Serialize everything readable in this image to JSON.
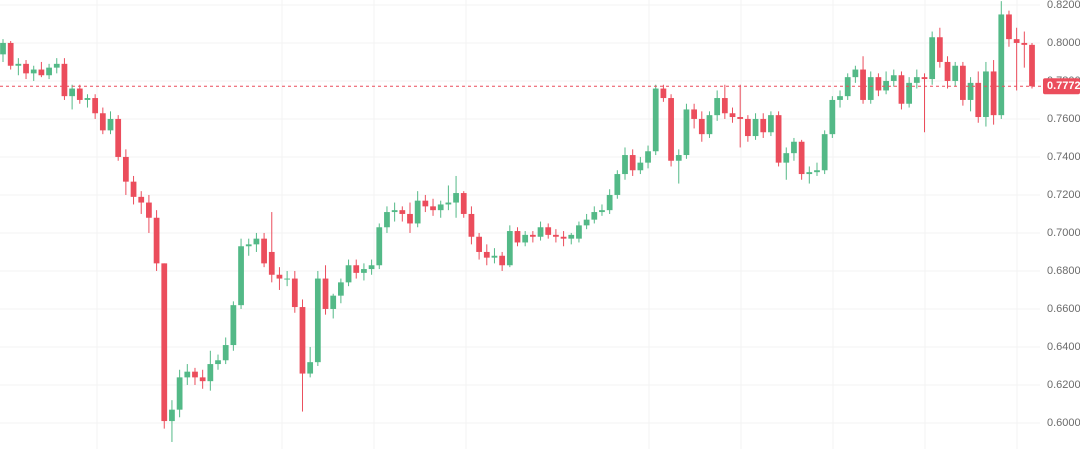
{
  "chart_data": {
    "type": "candlestick",
    "up_color": "#53b987",
    "down_color": "#eb4d5c",
    "grid": true,
    "ylim": [
      0.5863,
      0.8226
    ],
    "yticks": [
      {
        "value": 0.6,
        "label": "0.6000"
      },
      {
        "value": 0.62,
        "label": "0.6200"
      },
      {
        "value": 0.64,
        "label": "0.6400"
      },
      {
        "value": 0.66,
        "label": "0.6600"
      },
      {
        "value": 0.68,
        "label": "0.6800"
      },
      {
        "value": 0.7,
        "label": "0.7000"
      },
      {
        "value": 0.72,
        "label": "0.7200"
      },
      {
        "value": 0.74,
        "label": "0.7400"
      },
      {
        "value": 0.76,
        "label": "0.7600"
      },
      {
        "value": 0.78,
        "label": "0.7800"
      },
      {
        "value": 0.8,
        "label": "0.8000"
      },
      {
        "value": 0.82,
        "label": "0.8200"
      }
    ],
    "current_price": 0.7772,
    "open": [
      0.794,
      0.8,
      0.788,
      0.789,
      0.784,
      0.786,
      0.783,
      0.787,
      0.789,
      0.772,
      0.776,
      0.77,
      0.771,
      0.763,
      0.754,
      0.76,
      0.74,
      0.727,
      0.719,
      0.716,
      0.708,
      0.684,
      0.601,
      0.607,
      0.624,
      0.627,
      0.624,
      0.622,
      0.631,
      0.633,
      0.641,
      0.662,
      0.693,
      0.694,
      0.697,
      0.69,
      0.678,
      0.676,
      0.676,
      0.661,
      0.626,
      0.632,
      0.676,
      0.66,
      0.667,
      0.674,
      0.683,
      0.679,
      0.681,
      0.683,
      0.703,
      0.711,
      0.712,
      0.71,
      0.705,
      0.717,
      0.714,
      0.712,
      0.715,
      0.716,
      0.721,
      0.71,
      0.698,
      0.69,
      0.687,
      0.688,
      0.683,
      0.701,
      0.695,
      0.699,
      0.698,
      0.703,
      0.699,
      0.698,
      0.697,
      0.697,
      0.704,
      0.707,
      0.711,
      0.712,
      0.72,
      0.731,
      0.741,
      0.733,
      0.737,
      0.743,
      0.776,
      0.771,
      0.738,
      0.741,
      0.765,
      0.76,
      0.752,
      0.762,
      0.771,
      0.763,
      0.761,
      0.76,
      0.751,
      0.76,
      0.753,
      0.762,
      0.737,
      0.742,
      0.748,
      0.731,
      0.732,
      0.733,
      0.752,
      0.77,
      0.772,
      0.782,
      0.786,
      0.77,
      0.782,
      0.775,
      0.78,
      0.783,
      0.768,
      0.779,
      0.782,
      0.781,
      0.803,
      0.79,
      0.78,
      0.788,
      0.77,
      0.779,
      0.761,
      0.785,
      0.762,
      0.815,
      0.802,
      0.8,
      0.799
    ],
    "high": [
      0.802,
      0.801,
      0.792,
      0.791,
      0.788,
      0.79,
      0.789,
      0.792,
      0.792,
      0.778,
      0.778,
      0.773,
      0.773,
      0.766,
      0.764,
      0.762,
      0.744,
      0.73,
      0.722,
      0.72,
      0.712,
      0.684,
      0.612,
      0.628,
      0.631,
      0.629,
      0.628,
      0.638,
      0.636,
      0.645,
      0.664,
      0.697,
      0.697,
      0.7,
      0.7,
      0.711,
      0.682,
      0.68,
      0.68,
      0.665,
      0.64,
      0.68,
      0.683,
      0.668,
      0.676,
      0.686,
      0.686,
      0.684,
      0.686,
      0.705,
      0.714,
      0.716,
      0.714,
      0.716,
      0.722,
      0.72,
      0.718,
      0.717,
      0.725,
      0.73,
      0.722,
      0.714,
      0.7,
      0.694,
      0.692,
      0.69,
      0.704,
      0.703,
      0.701,
      0.701,
      0.706,
      0.705,
      0.702,
      0.701,
      0.7,
      0.706,
      0.71,
      0.714,
      0.715,
      0.723,
      0.733,
      0.745,
      0.744,
      0.74,
      0.746,
      0.778,
      0.778,
      0.773,
      0.744,
      0.768,
      0.768,
      0.764,
      0.764,
      0.775,
      0.778,
      0.766,
      0.778,
      0.762,
      0.763,
      0.763,
      0.764,
      0.764,
      0.745,
      0.75,
      0.749,
      0.735,
      0.737,
      0.754,
      0.772,
      0.775,
      0.784,
      0.788,
      0.793,
      0.785,
      0.784,
      0.785,
      0.786,
      0.785,
      0.782,
      0.786,
      0.784,
      0.806,
      0.808,
      0.793,
      0.79,
      0.79,
      0.782,
      0.785,
      0.79,
      0.791,
      0.822,
      0.817,
      0.808,
      0.806,
      0.8
    ],
    "low": [
      0.79,
      0.786,
      0.783,
      0.781,
      0.78,
      0.782,
      0.781,
      0.784,
      0.77,
      0.765,
      0.768,
      0.766,
      0.76,
      0.752,
      0.752,
      0.738,
      0.72,
      0.715,
      0.71,
      0.7,
      0.68,
      0.597,
      0.59,
      0.603,
      0.62,
      0.62,
      0.618,
      0.617,
      0.628,
      0.631,
      0.638,
      0.66,
      0.688,
      0.69,
      0.682,
      0.674,
      0.67,
      0.672,
      0.658,
      0.606,
      0.624,
      0.63,
      0.657,
      0.655,
      0.663,
      0.672,
      0.676,
      0.675,
      0.678,
      0.681,
      0.7,
      0.706,
      0.706,
      0.7,
      0.703,
      0.711,
      0.709,
      0.708,
      0.712,
      0.708,
      0.708,
      0.694,
      0.686,
      0.683,
      0.684,
      0.68,
      0.682,
      0.693,
      0.693,
      0.695,
      0.696,
      0.697,
      0.695,
      0.693,
      0.694,
      0.695,
      0.702,
      0.705,
      0.709,
      0.71,
      0.718,
      0.728,
      0.73,
      0.731,
      0.734,
      0.741,
      0.769,
      0.735,
      0.726,
      0.739,
      0.755,
      0.748,
      0.75,
      0.759,
      0.76,
      0.758,
      0.745,
      0.748,
      0.749,
      0.75,
      0.751,
      0.735,
      0.728,
      0.738,
      0.728,
      0.726,
      0.73,
      0.731,
      0.75,
      0.766,
      0.77,
      0.779,
      0.768,
      0.768,
      0.772,
      0.773,
      0.777,
      0.765,
      0.766,
      0.776,
      0.753,
      0.778,
      0.787,
      0.776,
      0.777,
      0.767,
      0.764,
      0.758,
      0.756,
      0.757,
      0.76,
      0.798,
      0.775,
      0.787,
      0.776
    ],
    "close": [
      0.8,
      0.788,
      0.789,
      0.784,
      0.786,
      0.783,
      0.787,
      0.789,
      0.772,
      0.776,
      0.77,
      0.771,
      0.763,
      0.754,
      0.76,
      0.74,
      0.727,
      0.719,
      0.716,
      0.708,
      0.684,
      0.601,
      0.607,
      0.624,
      0.627,
      0.624,
      0.622,
      0.631,
      0.633,
      0.641,
      0.662,
      0.693,
      0.694,
      0.697,
      0.684,
      0.678,
      0.676,
      0.676,
      0.661,
      0.626,
      0.632,
      0.676,
      0.66,
      0.667,
      0.674,
      0.683,
      0.679,
      0.681,
      0.683,
      0.703,
      0.711,
      0.712,
      0.71,
      0.705,
      0.717,
      0.714,
      0.712,
      0.715,
      0.716,
      0.721,
      0.71,
      0.698,
      0.69,
      0.687,
      0.688,
      0.683,
      0.701,
      0.695,
      0.699,
      0.698,
      0.703,
      0.699,
      0.698,
      0.697,
      0.699,
      0.704,
      0.707,
      0.711,
      0.712,
      0.72,
      0.731,
      0.741,
      0.733,
      0.737,
      0.743,
      0.776,
      0.771,
      0.738,
      0.741,
      0.765,
      0.76,
      0.752,
      0.762,
      0.771,
      0.763,
      0.761,
      0.76,
      0.751,
      0.76,
      0.753,
      0.762,
      0.737,
      0.742,
      0.748,
      0.731,
      0.732,
      0.733,
      0.752,
      0.77,
      0.772,
      0.782,
      0.786,
      0.77,
      0.782,
      0.775,
      0.78,
      0.783,
      0.768,
      0.779,
      0.782,
      0.781,
      0.803,
      0.79,
      0.78,
      0.788,
      0.77,
      0.779,
      0.761,
      0.785,
      0.762,
      0.815,
      0.802,
      0.8,
      0.799,
      0.7772
    ]
  }
}
